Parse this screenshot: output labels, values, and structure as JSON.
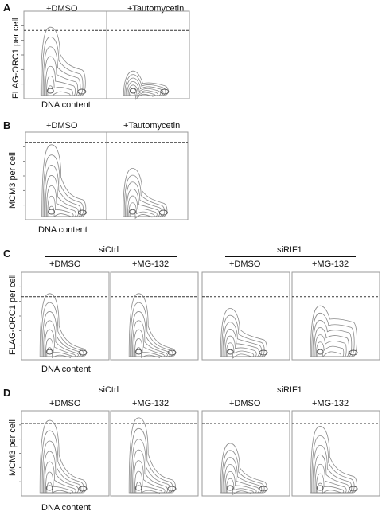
{
  "panels": {
    "A": {
      "letter": "A",
      "col_titles": [
        "+DMSO",
        "+Tautomycetin"
      ],
      "ylabel": "FLAG-ORC1 per cell",
      "xlabel": "DNA content"
    },
    "B": {
      "letter": "B",
      "col_titles": [
        "+DMSO",
        "+Tautomycetin"
      ],
      "ylabel": "MCM3 per cell",
      "xlabel": "DNA content"
    },
    "C": {
      "letter": "C",
      "groups": [
        "siCtrl",
        "siRIF1"
      ],
      "col_titles": [
        "+DMSO",
        "+MG-132",
        "+DMSO",
        "+MG-132"
      ],
      "ylabel": "FLAG-ORC1 per cell",
      "xlabel": "DNA content"
    },
    "D": {
      "letter": "D",
      "groups": [
        "siCtrl",
        "siRIF1"
      ],
      "col_titles": [
        "+DMSO",
        "+MG-132",
        "+DMSO",
        "+MG-132"
      ],
      "ylabel": "MCM3 per cell",
      "xlabel": "DNA content"
    }
  },
  "chart_data": [
    {
      "type": "contour",
      "panel": "A",
      "condition": "+DMSO",
      "g1_peak_rel": 0.78,
      "g2_peak_rel": 0.32,
      "threshold_rel": 0.78
    },
    {
      "type": "contour",
      "panel": "A",
      "condition": "+Tautomycetin",
      "g1_peak_rel": 0.28,
      "g2_peak_rel": 0.14,
      "threshold_rel": 0.78
    },
    {
      "type": "contour",
      "panel": "B",
      "condition": "+DMSO",
      "g1_peak_rel": 0.82,
      "g2_peak_rel": 0.22,
      "threshold_rel": 0.88
    },
    {
      "type": "contour",
      "panel": "B",
      "condition": "+Tautomycetin",
      "g1_peak_rel": 0.55,
      "g2_peak_rel": 0.18,
      "threshold_rel": 0.88
    },
    {
      "type": "contour",
      "panel": "C",
      "group": "siCtrl",
      "condition": "+DMSO",
      "g1_peak_rel": 0.72,
      "g2_peak_rel": 0.12,
      "threshold_rel": 0.72
    },
    {
      "type": "contour",
      "panel": "C",
      "group": "siCtrl",
      "condition": "+MG-132",
      "g1_peak_rel": 0.72,
      "g2_peak_rel": 0.12,
      "threshold_rel": 0.72
    },
    {
      "type": "contour",
      "panel": "C",
      "group": "siRIF1",
      "condition": "+DMSO",
      "g1_peak_rel": 0.55,
      "g2_peak_rel": 0.22,
      "threshold_rel": 0.72
    },
    {
      "type": "contour",
      "panel": "C",
      "group": "siRIF1",
      "condition": "+MG-132",
      "g1_peak_rel": 0.58,
      "g2_peak_rel": 0.42,
      "threshold_rel": 0.72
    },
    {
      "type": "contour",
      "panel": "D",
      "group": "siCtrl",
      "condition": "+DMSO",
      "g1_peak_rel": 0.85,
      "g2_peak_rel": 0.18,
      "threshold_rel": 0.85
    },
    {
      "type": "contour",
      "panel": "D",
      "group": "siCtrl",
      "condition": "+MG-132",
      "g1_peak_rel": 0.88,
      "g2_peak_rel": 0.18,
      "threshold_rel": 0.85
    },
    {
      "type": "contour",
      "panel": "D",
      "group": "siRIF1",
      "condition": "+DMSO",
      "g1_peak_rel": 0.58,
      "g2_peak_rel": 0.16,
      "threshold_rel": 0.85
    },
    {
      "type": "contour",
      "panel": "D",
      "group": "siRIF1",
      "condition": "+MG-132",
      "g1_peak_rel": 0.78,
      "g2_peak_rel": 0.22,
      "threshold_rel": 0.85
    }
  ]
}
